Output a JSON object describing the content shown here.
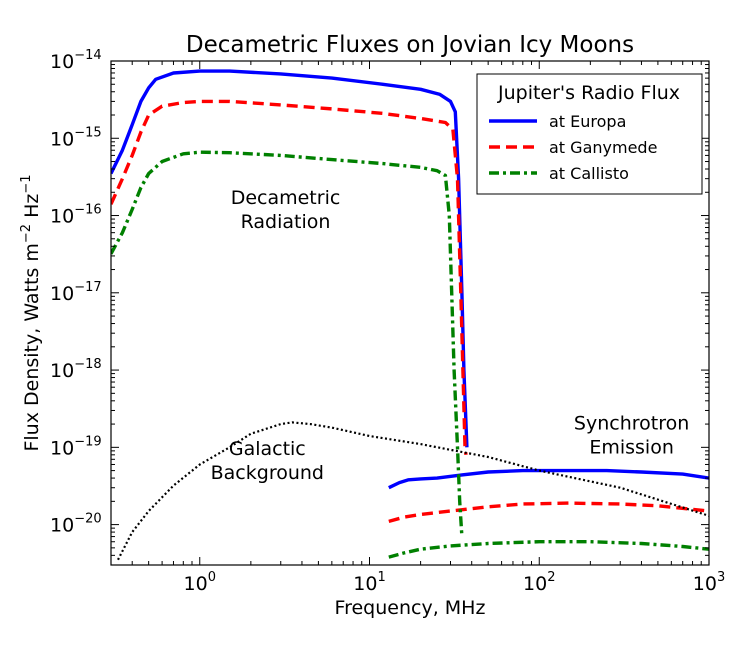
{
  "chart_data": {
    "type": "line",
    "title": "Decametric Fluxes on Jovian Icy Moons",
    "xlabel": "Frequency, MHz",
    "ylabel": "Flux Density, Watts m",
    "ylabel_sup1": "−2",
    "ylabel_mid": " Hz",
    "ylabel_sup2": "−1",
    "xscale": "log",
    "yscale": "log",
    "xlim": [
      0.3,
      1000
    ],
    "ylim": [
      3e-21,
      1e-14
    ],
    "grid": false,
    "legend_position": "top-right",
    "legend_title": "Jupiter's Radio Flux",
    "x_ticks": [
      {
        "value": 1,
        "base": "10",
        "exp": "0"
      },
      {
        "value": 10,
        "base": "10",
        "exp": "1"
      },
      {
        "value": 100,
        "base": "10",
        "exp": "2"
      },
      {
        "value": 1000,
        "base": "10",
        "exp": "3"
      }
    ],
    "y_ticks": [
      {
        "value": 1e-20,
        "base": "10",
        "exp": "−20"
      },
      {
        "value": 1e-19,
        "base": "10",
        "exp": "−19"
      },
      {
        "value": 1e-18,
        "base": "10",
        "exp": "−18"
      },
      {
        "value": 1e-17,
        "base": "10",
        "exp": "−17"
      },
      {
        "value": 1e-16,
        "base": "10",
        "exp": "−16"
      },
      {
        "value": 1e-15,
        "base": "10",
        "exp": "−15"
      },
      {
        "value": 1e-14,
        "base": "10",
        "exp": "−14"
      }
    ],
    "annotations": [
      {
        "lines": [
          "Decametric",
          "Radiation"
        ],
        "x": 3.2,
        "y": 1.4e-16
      },
      {
        "lines": [
          "Galactic",
          "Background"
        ],
        "x": 2.5,
        "y": 8e-20
      },
      {
        "lines": [
          "Synchrotron",
          "Emission"
        ],
        "x": 350,
        "y": 1.7e-19
      }
    ],
    "series": [
      {
        "name": "at Europa",
        "color": "#0000ff",
        "style": "solid",
        "legend": true,
        "segments": [
          [
            [
              0.3,
              3.5e-16
            ],
            [
              0.35,
              7e-16
            ],
            [
              0.4,
              1.5e-15
            ],
            [
              0.45,
              3e-15
            ],
            [
              0.5,
              4.5e-15
            ],
            [
              0.55,
              5.8e-15
            ],
            [
              0.7,
              7e-15
            ],
            [
              1,
              7.4e-15
            ],
            [
              1.5,
              7.4e-15
            ],
            [
              3,
              6.8e-15
            ],
            [
              6,
              6e-15
            ],
            [
              12,
              5e-15
            ],
            [
              20,
              4.3e-15
            ],
            [
              26,
              3.7e-15
            ],
            [
              30,
              3e-15
            ],
            [
              32,
              2.2e-15
            ],
            [
              33.5,
              3e-16
            ],
            [
              35,
              1e-17
            ],
            [
              36,
              1e-18
            ],
            [
              37,
              2e-19
            ],
            [
              37.5,
              1e-19
            ]
          ],
          [
            [
              13,
              3e-20
            ],
            [
              15,
              3.5e-20
            ],
            [
              17,
              3.8e-20
            ],
            [
              20,
              3.9e-20
            ],
            [
              25,
              4e-20
            ],
            [
              35,
              4.4e-20
            ],
            [
              50,
              4.8e-20
            ],
            [
              80,
              5e-20
            ],
            [
              150,
              5e-20
            ],
            [
              250,
              5e-20
            ],
            [
              400,
              4.8e-20
            ],
            [
              700,
              4.5e-20
            ],
            [
              1000,
              4e-20
            ]
          ]
        ]
      },
      {
        "name": "at Ganymede",
        "color": "#ff0000",
        "style": "dashed",
        "legend": true,
        "segments": [
          [
            [
              0.3,
              1.4e-16
            ],
            [
              0.35,
              3e-16
            ],
            [
              0.4,
              6e-16
            ],
            [
              0.45,
              1.2e-15
            ],
            [
              0.5,
              2e-15
            ],
            [
              0.6,
              2.6e-15
            ],
            [
              0.8,
              2.9e-15
            ],
            [
              1,
              3e-15
            ],
            [
              1.5,
              3e-15
            ],
            [
              3,
              2.7e-15
            ],
            [
              6,
              2.4e-15
            ],
            [
              12,
              2.1e-15
            ],
            [
              20,
              1.8e-15
            ],
            [
              28,
              1.6e-15
            ],
            [
              31,
              1.3e-15
            ],
            [
              33,
              3e-16
            ],
            [
              34.5,
              1e-17
            ],
            [
              35.5,
              1e-18
            ],
            [
              36.5,
              1e-19
            ],
            [
              37,
              8e-20
            ]
          ],
          [
            [
              13,
              1.1e-20
            ],
            [
              16,
              1.25e-20
            ],
            [
              20,
              1.35e-20
            ],
            [
              30,
              1.5e-20
            ],
            [
              50,
              1.7e-20
            ],
            [
              80,
              1.85e-20
            ],
            [
              150,
              1.9e-20
            ],
            [
              300,
              1.85e-20
            ],
            [
              500,
              1.75e-20
            ],
            [
              1000,
              1.5e-20
            ]
          ]
        ]
      },
      {
        "name": "at Callisto",
        "color": "#008000",
        "style": "dashdot",
        "legend": true,
        "segments": [
          [
            [
              0.3,
              3.2e-17
            ],
            [
              0.35,
              6e-17
            ],
            [
              0.4,
              1.2e-16
            ],
            [
              0.45,
              2.3e-16
            ],
            [
              0.5,
              3.5e-16
            ],
            [
              0.6,
              5e-16
            ],
            [
              0.8,
              6.3e-16
            ],
            [
              1,
              6.6e-16
            ],
            [
              1.5,
              6.5e-16
            ],
            [
              3,
              6e-16
            ],
            [
              6,
              5.3e-16
            ],
            [
              12,
              4.7e-16
            ],
            [
              20,
              4.2e-16
            ],
            [
              25,
              3.8e-16
            ],
            [
              28,
              3.3e-16
            ],
            [
              29.5,
              1e-16
            ],
            [
              30.5,
              1e-17
            ],
            [
              31.5,
              1e-18
            ],
            [
              33,
              1e-19
            ],
            [
              34,
              2e-20
            ],
            [
              35,
              7e-21
            ]
          ],
          [
            [
              13,
              3.8e-21
            ],
            [
              16,
              4.3e-21
            ],
            [
              20,
              4.8e-21
            ],
            [
              30,
              5.3e-21
            ],
            [
              50,
              5.7e-21
            ],
            [
              100,
              6e-21
            ],
            [
              200,
              6e-21
            ],
            [
              400,
              5.7e-21
            ],
            [
              700,
              5.2e-21
            ],
            [
              1000,
              4.8e-21
            ]
          ]
        ]
      },
      {
        "name": "",
        "color": "#000000",
        "style": "dotted",
        "legend": false,
        "segments": [
          [
            [
              0.33,
              3.5e-21
            ],
            [
              0.4,
              8e-21
            ],
            [
              0.5,
              1.5e-20
            ],
            [
              0.7,
              3.2e-20
            ],
            [
              1,
              6e-20
            ],
            [
              1.5,
              1e-19
            ],
            [
              2,
              1.5e-19
            ],
            [
              3,
              2e-19
            ],
            [
              3.5,
              2.1e-19
            ],
            [
              4.5,
              2e-19
            ],
            [
              6,
              1.8e-19
            ],
            [
              10,
              1.4e-19
            ],
            [
              20,
              1.1e-19
            ],
            [
              50,
              7.5e-20
            ],
            [
              100,
              5e-20
            ],
            [
              300,
              3e-20
            ],
            [
              1000,
              1.3e-20
            ]
          ]
        ]
      }
    ]
  }
}
